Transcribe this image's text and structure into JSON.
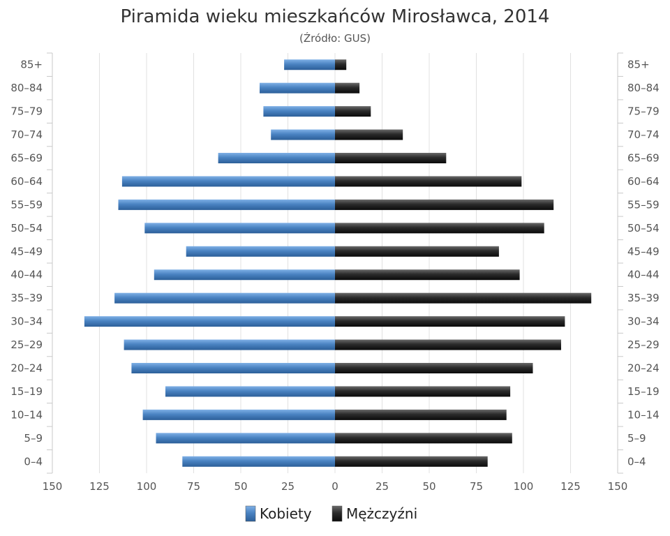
{
  "chart_data": {
    "type": "bar",
    "orientation": "horizontal",
    "title": "Piramida wieku mieszkańców Mirosławca, 2014",
    "subtitle": "(Źródło: GUS)",
    "categories": [
      "0–4",
      "5–9",
      "10–14",
      "15–19",
      "20–24",
      "25–29",
      "30–34",
      "35–39",
      "40–44",
      "45–49",
      "50–54",
      "55–59",
      "60–64",
      "65–69",
      "70–74",
      "75–79",
      "80–84",
      "85+"
    ],
    "series": [
      {
        "name": "Kobiety",
        "color": "#4a83c2",
        "values": [
          81,
          95,
          102,
          90,
          108,
          112,
          133,
          117,
          96,
          79,
          101,
          115,
          113,
          62,
          34,
          38,
          40,
          27
        ]
      },
      {
        "name": "Mężczyźni",
        "color": "#2b2b2b",
        "values": [
          81,
          94,
          91,
          93,
          105,
          120,
          122,
          136,
          98,
          87,
          111,
          116,
          99,
          59,
          36,
          19,
          13,
          6
        ]
      }
    ],
    "xlim": [
      -150,
      150
    ],
    "x_ticks": [
      -150,
      -125,
      -100,
      -75,
      -50,
      -25,
      0,
      25,
      50,
      75,
      100,
      125,
      150
    ],
    "x_tick_labels": [
      "150",
      "125",
      "100",
      "75",
      "50",
      "25",
      "0",
      "25",
      "50",
      "75",
      "100",
      "125",
      "150"
    ],
    "grid": true,
    "legend_position": "bottom-center"
  }
}
